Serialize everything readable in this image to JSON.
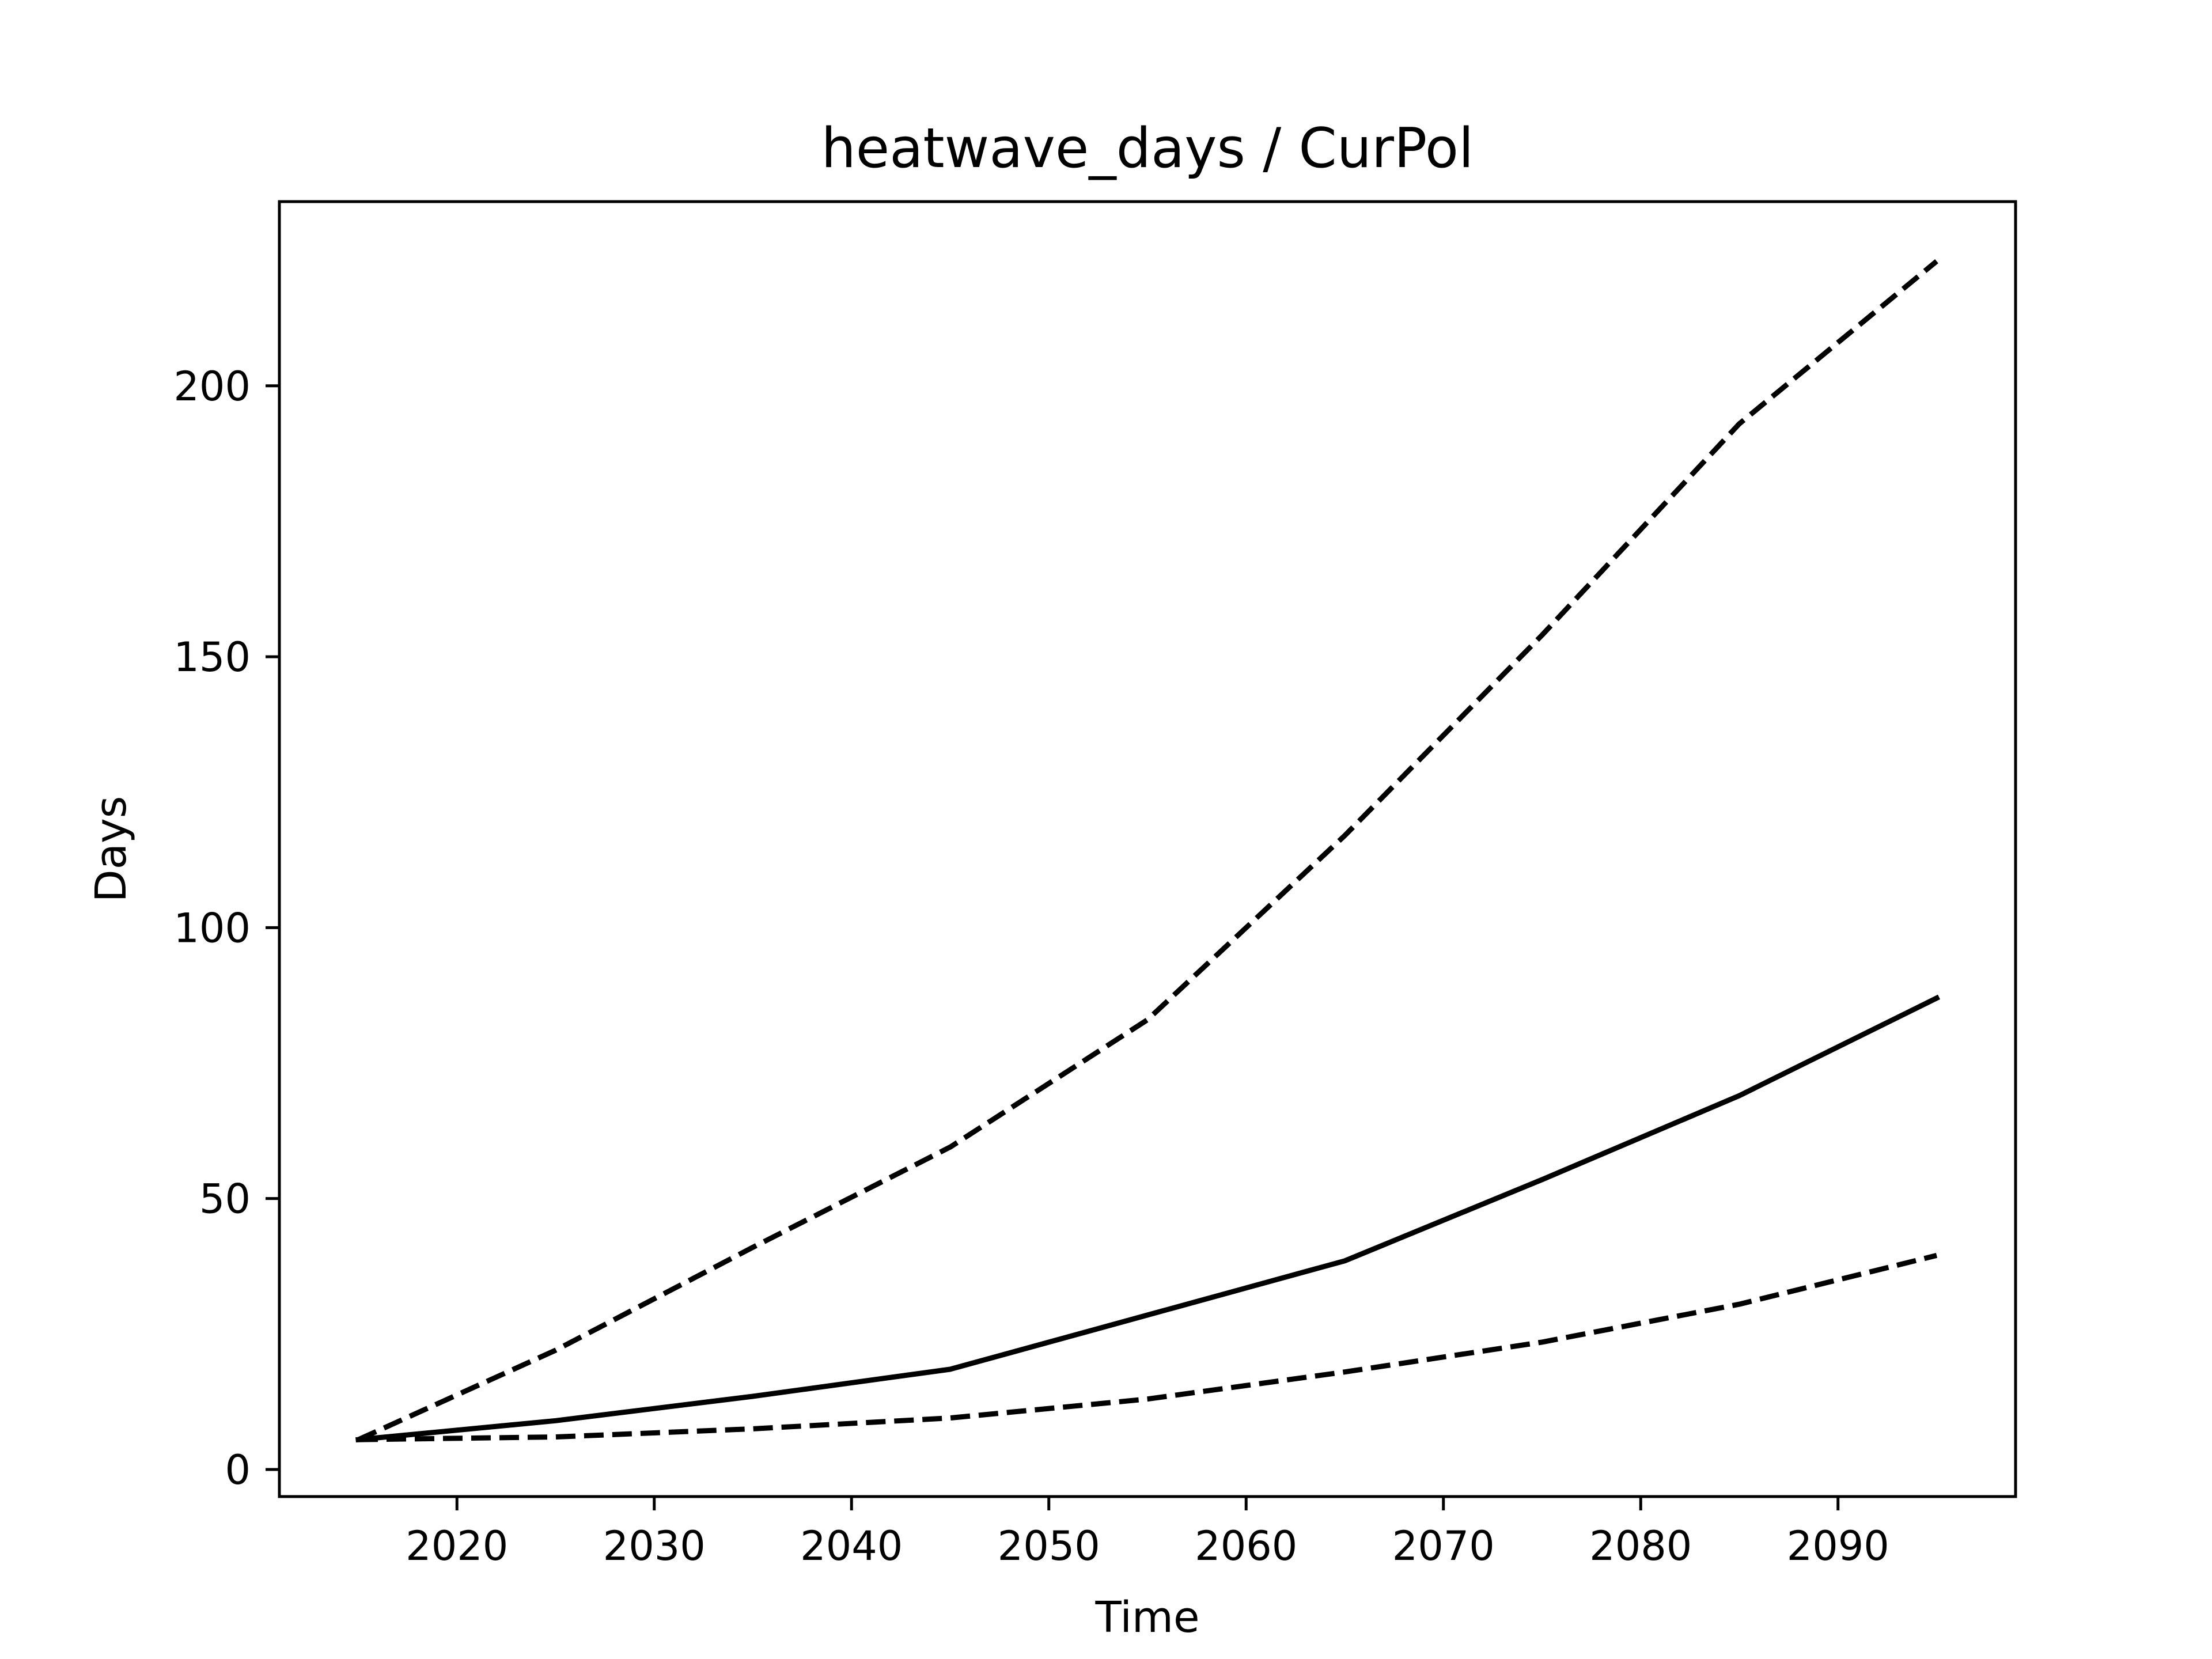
{
  "chart_data": {
    "type": "line",
    "title": "heatwave_days / CurPol",
    "xlabel": "Time",
    "ylabel": "Days",
    "xlim": [
      2011,
      2099
    ],
    "ylim": [
      -5,
      234
    ],
    "xticks": [
      2020,
      2030,
      2040,
      2050,
      2060,
      2070,
      2080,
      2090
    ],
    "yticks": [
      0,
      50,
      100,
      150,
      200
    ],
    "grid": false,
    "legend": "none",
    "x": [
      2015,
      2025,
      2035,
      2045,
      2055,
      2065,
      2075,
      2085,
      2095
    ],
    "series": [
      {
        "style": "dashed",
        "color": "#000000",
        "values": [
          5.5,
          22,
          41,
          59.5,
          83,
          117,
          154,
          193,
          223
        ]
      },
      {
        "style": "solid",
        "color": "#000000",
        "values": [
          5.5,
          9,
          13.5,
          18.5,
          28.5,
          38.5,
          53.5,
          69,
          87
        ]
      },
      {
        "style": "dashed",
        "color": "#000000",
        "values": [
          5.5,
          6,
          7.5,
          9.5,
          13,
          18,
          23.5,
          30.5,
          39.5
        ]
      }
    ]
  }
}
